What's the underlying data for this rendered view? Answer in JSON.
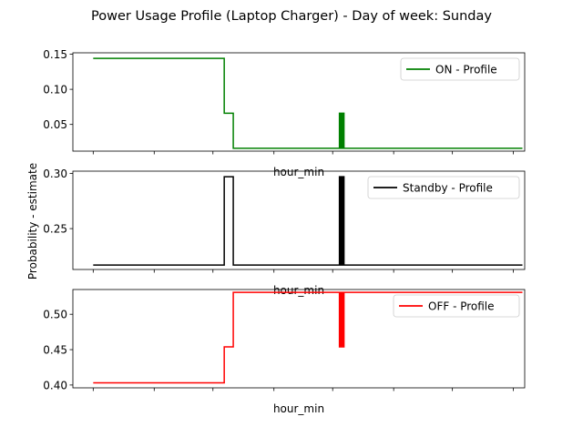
{
  "figure": {
    "title": "Power Usage Profile (Laptop Charger) - Day of week: Sunday",
    "ylabel": "Probability - estimate",
    "xlabel": "hour_min"
  },
  "chart_data": [
    {
      "type": "line",
      "xlabel": "hour_min",
      "ylabel": "",
      "xlim": [
        0,
        1.0
      ],
      "ylim": [
        0.012,
        0.152
      ],
      "yticks": [
        0.05,
        0.1,
        0.15
      ],
      "ytick_labels": [
        "0.05",
        "0.10",
        "0.15"
      ],
      "xticks": [
        0.045,
        0.18,
        0.31,
        0.445,
        0.575,
        0.71,
        0.84,
        0.975
      ],
      "grid": false,
      "legend_position": "upper right",
      "series": [
        {
          "name": "ON - Profile",
          "color": "#008000",
          "points": [
            [
              0.045,
              0.144
            ],
            [
              0.335,
              0.144
            ],
            [
              0.335,
              0.066
            ],
            [
              0.355,
              0.066
            ],
            [
              0.355,
              0.016
            ],
            [
              0.59,
              0.016
            ],
            [
              0.59,
              0.066
            ],
            [
              0.592,
              0.066
            ],
            [
              0.592,
              0.016
            ],
            [
              0.594,
              0.016
            ],
            [
              0.594,
              0.066
            ],
            [
              0.596,
              0.066
            ],
            [
              0.596,
              0.016
            ],
            [
              0.598,
              0.016
            ],
            [
              0.598,
              0.066
            ],
            [
              0.6,
              0.066
            ],
            [
              0.6,
              0.016
            ],
            [
              0.995,
              0.016
            ]
          ]
        }
      ]
    },
    {
      "type": "line",
      "xlabel": "hour_min",
      "ylabel": "",
      "xlim": [
        0,
        1.0
      ],
      "ylim": [
        0.213,
        0.302
      ],
      "yticks": [
        0.25,
        0.3
      ],
      "ytick_labels": [
        "0.25",
        "0.30"
      ],
      "xticks": [
        0.045,
        0.18,
        0.31,
        0.445,
        0.575,
        0.71,
        0.84,
        0.975
      ],
      "grid": false,
      "legend_position": "upper right",
      "series": [
        {
          "name": "Standby - Profile",
          "color": "#000000",
          "points": [
            [
              0.045,
              0.217
            ],
            [
              0.335,
              0.217
            ],
            [
              0.335,
              0.297
            ],
            [
              0.355,
              0.297
            ],
            [
              0.355,
              0.217
            ],
            [
              0.59,
              0.217
            ],
            [
              0.59,
              0.297
            ],
            [
              0.592,
              0.297
            ],
            [
              0.592,
              0.217
            ],
            [
              0.594,
              0.217
            ],
            [
              0.594,
              0.297
            ],
            [
              0.596,
              0.297
            ],
            [
              0.596,
              0.217
            ],
            [
              0.598,
              0.217
            ],
            [
              0.598,
              0.297
            ],
            [
              0.6,
              0.297
            ],
            [
              0.6,
              0.217
            ],
            [
              0.995,
              0.217
            ]
          ]
        }
      ]
    },
    {
      "type": "line",
      "xlabel": "hour_min",
      "ylabel": "",
      "xlim": [
        0,
        1.0
      ],
      "ylim": [
        0.396,
        0.535
      ],
      "yticks": [
        0.4,
        0.45,
        0.5
      ],
      "ytick_labels": [
        "0.40",
        "0.45",
        "0.50"
      ],
      "xticks": [
        0.045,
        0.18,
        0.31,
        0.445,
        0.575,
        0.71,
        0.84,
        0.975
      ],
      "grid": false,
      "legend_position": "upper right",
      "series": [
        {
          "name": "OFF - Profile",
          "color": "#ff0000",
          "points": [
            [
              0.045,
              0.403
            ],
            [
              0.335,
              0.403
            ],
            [
              0.335,
              0.454
            ],
            [
              0.355,
              0.454
            ],
            [
              0.355,
              0.531
            ],
            [
              0.59,
              0.531
            ],
            [
              0.59,
              0.454
            ],
            [
              0.592,
              0.454
            ],
            [
              0.592,
              0.531
            ],
            [
              0.594,
              0.531
            ],
            [
              0.594,
              0.454
            ],
            [
              0.596,
              0.454
            ],
            [
              0.596,
              0.531
            ],
            [
              0.598,
              0.531
            ],
            [
              0.598,
              0.454
            ],
            [
              0.6,
              0.454
            ],
            [
              0.6,
              0.531
            ],
            [
              0.995,
              0.531
            ]
          ]
        }
      ]
    }
  ]
}
